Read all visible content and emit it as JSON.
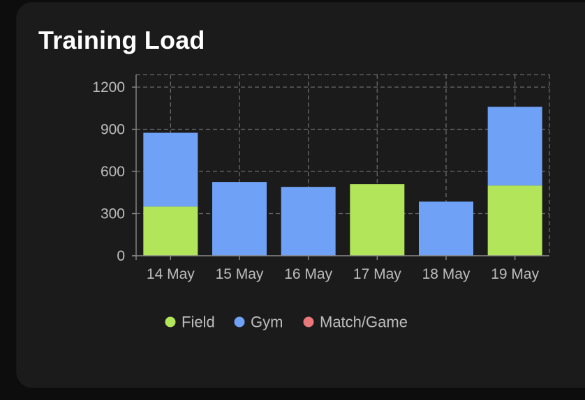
{
  "card": {
    "title": "Training Load"
  },
  "colors": {
    "field": "#b3e55a",
    "gym": "#6fa2f7",
    "match": "#e8787a",
    "grid": "#6a6a6a",
    "card_bg": "#1b1b1c"
  },
  "chart_data": {
    "type": "bar",
    "stacked": true,
    "categories": [
      "14 May",
      "15 May",
      "16 May",
      "17 May",
      "18 May",
      "19 May"
    ],
    "series": [
      {
        "name": "Field",
        "color": "#b3e55a",
        "values": [
          350,
          0,
          0,
          510,
          0,
          500
        ]
      },
      {
        "name": "Gym",
        "color": "#6fa2f7",
        "values": [
          525,
          525,
          490,
          0,
          385,
          560
        ]
      },
      {
        "name": "Match/Game",
        "color": "#e8787a",
        "values": [
          0,
          0,
          0,
          0,
          0,
          0
        ]
      }
    ],
    "yticks": [
      0,
      300,
      600,
      900,
      1200
    ],
    "ylim": [
      0,
      1200
    ],
    "grid": true,
    "legend_position": "bottom",
    "title": "Training Load",
    "xlabel": "",
    "ylabel": ""
  }
}
